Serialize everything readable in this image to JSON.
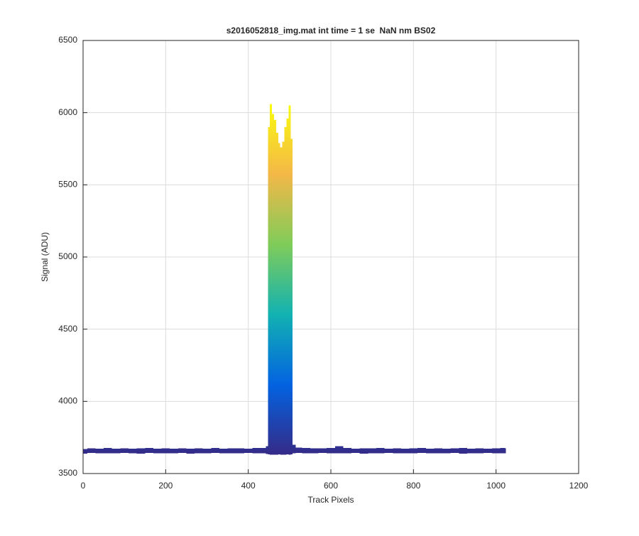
{
  "chart_data": {
    "type": "range",
    "title": "s2016052818_img.mat int time = 1 se  NaN nm BS02",
    "xlabel": "Track Pixels",
    "ylabel": "Signal (ADU)",
    "xlim": [
      0,
      1200
    ],
    "xticks": [
      0,
      200,
      400,
      600,
      800,
      1000,
      1200
    ],
    "ylim": [
      3500,
      6500
    ],
    "yticks": [
      3500,
      4000,
      4500,
      5000,
      5500,
      6000,
      6500
    ],
    "grid": true,
    "colormap": [
      "#352a87",
      "#0363e1",
      "#12b2b2",
      "#80cc59",
      "#f4b848",
      "#f9fb0e"
    ],
    "x": [
      0,
      20,
      40,
      60,
      80,
      100,
      120,
      140,
      160,
      180,
      200,
      220,
      240,
      260,
      280,
      300,
      320,
      340,
      360,
      380,
      400,
      420,
      440,
      445,
      450,
      455,
      460,
      465,
      470,
      475,
      480,
      485,
      490,
      495,
      500,
      505,
      510,
      520,
      540,
      560,
      580,
      600,
      620,
      640,
      660,
      680,
      700,
      720,
      740,
      760,
      780,
      800,
      820,
      840,
      860,
      880,
      900,
      920,
      940,
      960,
      980,
      1000,
      1020,
      1024
    ],
    "series": [
      {
        "values": [
          3670,
          3674,
          3672,
          3676,
          3673,
          3675,
          3671,
          3674,
          3676,
          3672,
          3675,
          3673,
          3674,
          3671,
          3675,
          3673,
          3676,
          3672,
          3674,
          3675,
          3673,
          3676,
          3678,
          3690,
          5900,
          6060,
          5990,
          5950,
          5860,
          5790,
          5760,
          5800,
          5900,
          5960,
          6050,
          5820,
          3700,
          3680,
          3676,
          3674,
          3675,
          3677,
          3690,
          3676,
          3673,
          3675,
          3674,
          3676,
          3672,
          3675,
          3673,
          3674,
          3676,
          3672,
          3675,
          3673,
          3674,
          3676,
          3672,
          3675,
          3673,
          3674,
          3676,
          3675
        ]
      },
      {
        "values": [
          3638,
          3642,
          3640,
          3641,
          3639,
          3643,
          3640,
          3638,
          3642,
          3641,
          3639,
          3640,
          3642,
          3638,
          3641,
          3640,
          3643,
          3639,
          3641,
          3640,
          3642,
          3639,
          3641,
          3636,
          3632,
          3630,
          3630,
          3631,
          3630,
          3632,
          3630,
          3631,
          3630,
          3632,
          3630,
          3634,
          3640,
          3642,
          3641,
          3640,
          3643,
          3639,
          3641,
          3640,
          3642,
          3638,
          3641,
          3640,
          3643,
          3639,
          3641,
          3640,
          3642,
          3639,
          3641,
          3640,
          3643,
          3638,
          3641,
          3640,
          3642,
          3639,
          3641,
          3640
        ]
      }
    ]
  }
}
